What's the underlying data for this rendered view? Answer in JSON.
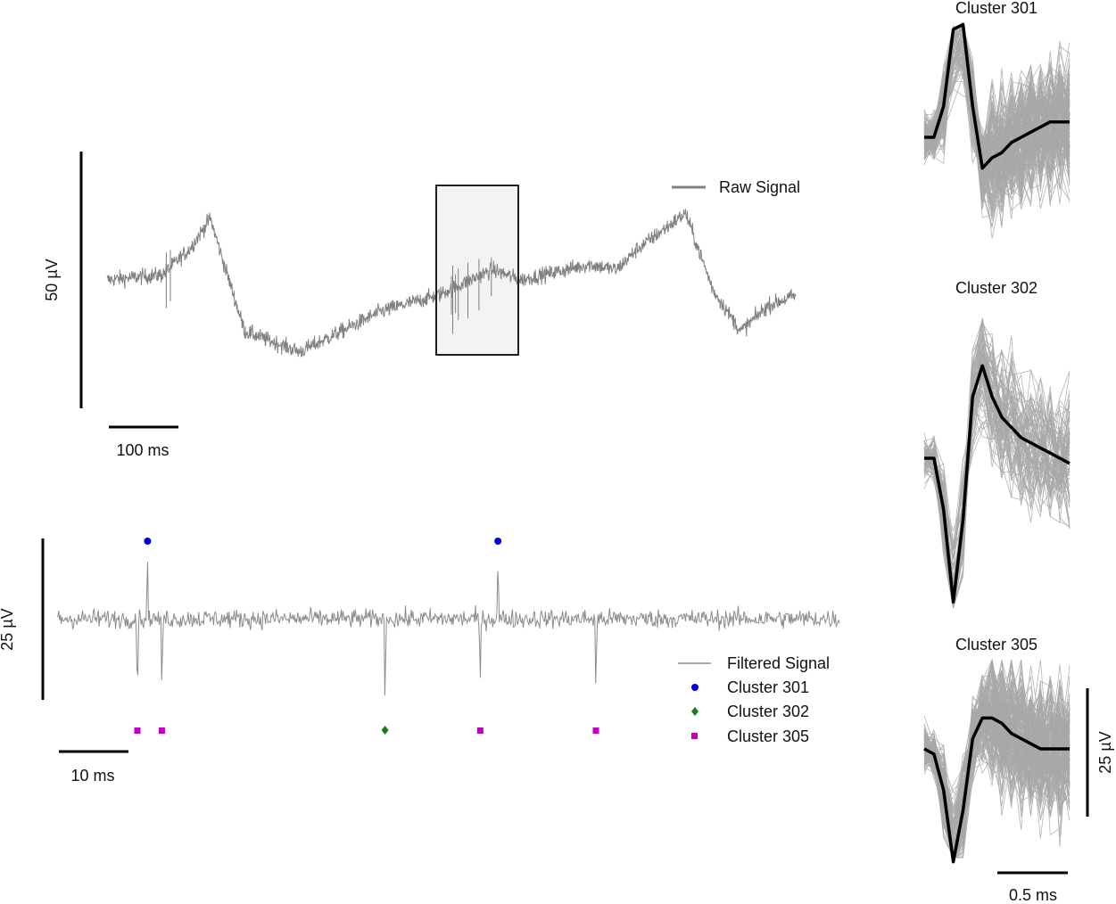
{
  "colors": {
    "raw": "#808080",
    "filtered": "#8c8c8c",
    "waveform": "#a8a8a8",
    "mean": "#000000",
    "cluster_301": "#0000dd",
    "cluster_302": "#1a7a1a",
    "cluster_305": "#c000c0",
    "highlight_fill": "#f3f3f3"
  },
  "raw_panel": {
    "scale_v": "50 µV",
    "scale_t": "100 ms",
    "legend": "Raw Signal"
  },
  "filtered_panel": {
    "scale_v": "25 µV",
    "scale_t": "10 ms",
    "legend_filtered": "Filtered Signal",
    "legend_301": "Cluster 301",
    "legend_302": "Cluster 302",
    "legend_305": "Cluster 305"
  },
  "waveform_panels": {
    "title_301": "Cluster 301",
    "title_302": "Cluster 302",
    "title_305": "Cluster 305",
    "scale_v": "25 µV",
    "scale_t": "0.5 ms"
  },
  "chart_data": [
    {
      "type": "line",
      "name": "raw",
      "legend": [
        "Raw Signal"
      ],
      "legend_position": "top-right",
      "scale_bars": {
        "voltage": "50 µV",
        "time": "100 ms"
      },
      "duration_ms": 500,
      "baseline_shape": {
        "t_ms": [
          0,
          40,
          60,
          75,
          85,
          100,
          140,
          200,
          240,
          280,
          300,
          350,
          370,
          385,
          420,
          440,
          460,
          480,
          500
        ],
        "uv": [
          0,
          1,
          6,
          12,
          3,
          -10,
          -14,
          -6,
          -3,
          2,
          0,
          3,
          2,
          6,
          13,
          -2,
          -10,
          -5,
          -3
        ]
      },
      "spike_times_ms": [
        43,
        46,
        253,
        251,
        250,
        255,
        262,
        270,
        279
      ],
      "highlighted_window_ms": [
        240,
        299
      ]
    },
    {
      "type": "line",
      "name": "filtered",
      "legend": [
        "Filtered Signal",
        "Cluster 301",
        "Cluster 302",
        "Cluster 305"
      ],
      "legend_position": "bottom-right",
      "scale_bars": {
        "voltage": "25 µV",
        "time": "10 ms"
      },
      "duration_ms": 115,
      "spikes": [
        {
          "t_ms": 11.8,
          "cluster": "305"
        },
        {
          "t_ms": 13.3,
          "cluster": "301"
        },
        {
          "t_ms": 15.4,
          "cluster": "305"
        },
        {
          "t_ms": 48.2,
          "cluster": "302"
        },
        {
          "t_ms": 62.2,
          "cluster": "305"
        },
        {
          "t_ms": 64.8,
          "cluster": "301"
        },
        {
          "t_ms": 79.2,
          "cluster": "305"
        }
      ]
    },
    {
      "type": "line",
      "name": "waveforms",
      "scale_bars": {
        "voltage": "25 µV",
        "time": "0.5 ms"
      },
      "clusters": [
        {
          "title": "Cluster 301",
          "duration_ms": 1.0,
          "peak_uv": 22,
          "trough_uv": -6,
          "mean": [
            0,
            0,
            6,
            21,
            22,
            6,
            -6,
            -4,
            -3,
            -1,
            0,
            1,
            2,
            3,
            3,
            3
          ]
        },
        {
          "title": "Cluster 302",
          "duration_ms": 1.0,
          "peak_uv": 18,
          "trough_uv": -28,
          "mean": [
            0,
            0,
            -10,
            -28,
            -12,
            12,
            18,
            12,
            8,
            6,
            4,
            3,
            2,
            1,
            0,
            -1
          ]
        },
        {
          "title": "Cluster 305",
          "duration_ms": 1.0,
          "peak_uv": 6,
          "trough_uv": -22,
          "mean": [
            0,
            -1,
            -8,
            -22,
            -12,
            2,
            6,
            6,
            5,
            3,
            2,
            1,
            0,
            0,
            0,
            0
          ]
        }
      ]
    }
  ]
}
